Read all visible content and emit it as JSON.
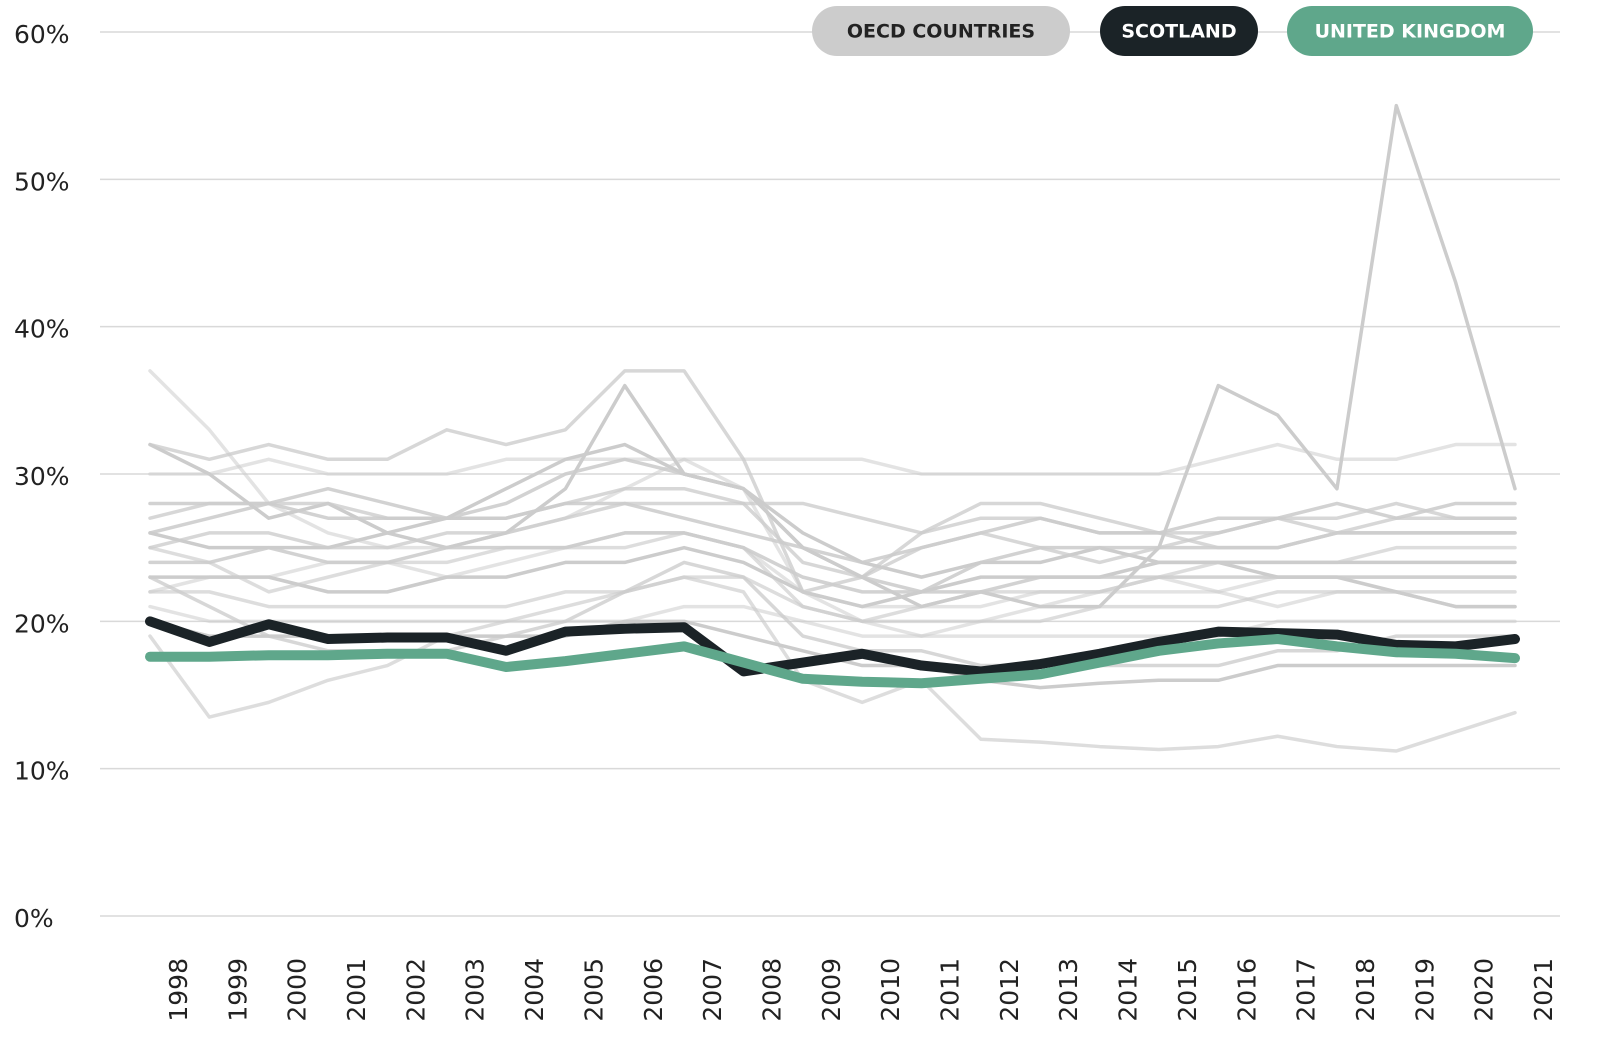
{
  "chart_data": {
    "type": "line",
    "categories": [
      "1998",
      "1999",
      "2000",
      "2001",
      "2002",
      "2003",
      "2004",
      "2005",
      "2006",
      "2007",
      "2008",
      "2009",
      "2010",
      "2011",
      "2012",
      "2013",
      "2014",
      "2015",
      "2016",
      "2017",
      "2018",
      "2019",
      "2020",
      "2021"
    ],
    "ylim": [
      0,
      60
    ],
    "yticks": [
      {
        "value": 0,
        "label": "0%"
      },
      {
        "value": 10,
        "label": "10%"
      },
      {
        "value": 20,
        "label": "20%"
      },
      {
        "value": 30,
        "label": "30%"
      },
      {
        "value": 40,
        "label": "40%"
      },
      {
        "value": 50,
        "label": "50%"
      },
      {
        "value": 60,
        "label": "60%"
      }
    ],
    "grid": true,
    "legend": "top-right",
    "series": [
      {
        "name": "OECD COUNTRIES",
        "color": "#cccccc",
        "lines": [
          [
            37,
            33,
            28,
            26,
            25,
            25,
            26,
            27,
            29,
            31,
            29,
            22,
            20,
            19,
            20,
            21,
            22,
            23,
            22,
            21,
            22,
            22,
            21,
            21
          ],
          [
            32,
            31,
            32,
            31,
            31,
            33,
            32,
            33,
            37,
            37,
            31,
            22,
            23,
            25,
            26,
            25,
            24,
            25,
            26,
            27,
            27,
            28,
            27,
            27
          ],
          [
            32,
            30,
            27,
            28,
            26,
            25,
            26,
            29,
            36,
            30,
            29,
            25,
            23,
            21,
            22,
            21,
            21,
            25,
            36,
            34,
            29,
            55,
            43,
            29
          ],
          [
            19,
            13.5,
            14.5,
            16,
            17,
            19,
            20,
            21,
            22,
            23,
            22,
            16,
            14.5,
            16,
            12,
            11.8,
            11.5,
            11.3,
            11.5,
            12.2,
            11.5,
            11.2,
            12.5,
            13.8
          ],
          [
            26,
            27,
            28,
            27,
            27,
            27,
            27,
            28,
            28,
            27,
            26,
            25,
            24,
            25,
            26,
            27,
            26,
            26,
            27,
            27,
            28,
            27,
            28,
            28
          ],
          [
            30,
            30,
            31,
            30,
            30,
            30,
            31,
            31,
            31,
            31,
            31,
            31,
            31,
            30,
            30,
            30,
            30,
            30,
            31,
            32,
            31,
            31,
            32,
            32
          ],
          [
            25,
            26,
            26,
            25,
            25,
            26,
            26,
            27,
            28,
            28,
            28,
            28,
            27,
            26,
            27,
            27,
            26,
            26,
            26,
            27,
            26,
            27,
            27,
            27
          ],
          [
            23,
            23,
            23,
            22,
            22,
            23,
            23,
            24,
            24,
            25,
            24,
            22,
            21,
            22,
            23,
            23,
            23,
            24,
            24,
            24,
            24,
            24,
            24,
            24
          ],
          [
            22,
            22,
            21,
            21,
            21,
            21,
            21,
            22,
            22,
            23,
            23,
            21,
            20,
            20,
            20,
            20,
            21,
            21,
            21,
            22,
            22,
            22,
            22,
            22
          ],
          [
            24,
            24,
            25,
            24,
            24,
            25,
            25,
            25,
            26,
            26,
            25,
            23,
            22,
            22,
            22,
            23,
            23,
            23,
            23,
            23,
            23,
            23,
            23,
            23
          ],
          [
            21,
            20,
            20,
            20,
            20,
            20,
            20,
            20,
            20,
            21,
            21,
            20,
            19,
            19,
            19,
            19,
            19,
            19,
            19,
            20,
            20,
            20,
            20,
            20
          ],
          [
            27,
            28,
            28,
            28,
            27,
            27,
            27,
            28,
            29,
            29,
            28,
            24,
            23,
            26,
            28,
            28,
            27,
            26,
            25,
            25,
            26,
            26,
            26,
            26
          ],
          [
            20,
            19,
            19,
            19,
            19,
            19,
            19,
            19,
            20,
            20,
            19,
            18,
            17,
            17,
            16,
            15.5,
            15.8,
            16,
            16,
            17,
            17,
            17,
            17,
            17
          ],
          [
            25,
            24,
            22,
            23,
            24,
            24,
            25,
            25,
            25,
            26,
            25,
            21,
            20,
            21,
            22,
            22,
            22,
            23,
            24,
            24,
            24,
            25,
            25,
            25
          ],
          [
            28,
            28,
            28,
            29,
            28,
            27,
            28,
            30,
            31,
            30,
            29,
            25,
            23,
            22,
            24,
            25,
            25,
            25,
            25,
            25,
            26,
            26,
            26,
            26
          ],
          [
            22,
            23,
            23,
            24,
            24,
            23,
            24,
            25,
            26,
            26,
            25,
            22,
            21,
            21,
            21,
            22,
            22,
            22,
            22,
            23,
            23,
            23,
            23,
            23
          ],
          [
            23,
            21,
            19,
            18,
            18,
            18,
            19,
            20,
            22,
            24,
            23,
            19,
            18,
            18,
            17,
            17,
            17,
            17,
            17,
            18,
            18,
            19,
            19,
            19
          ],
          [
            26,
            25,
            25,
            25,
            26,
            27,
            29,
            31,
            32,
            30,
            29,
            26,
            24,
            23,
            24,
            24,
            25,
            24,
            24,
            23,
            23,
            22,
            21,
            21
          ]
        ]
      },
      {
        "name": "SCOTLAND",
        "color": "#1b2327",
        "values": [
          20.0,
          18.6,
          19.8,
          18.8,
          18.9,
          18.9,
          18.0,
          19.3,
          19.5,
          19.6,
          16.6,
          17.2,
          17.8,
          17.0,
          16.6,
          17.1,
          17.8,
          18.6,
          19.3,
          19.2,
          19.1,
          18.4,
          18.3,
          18.8
        ]
      },
      {
        "name": "UNITED KINGDOM",
        "color": "#5fa78b",
        "values": [
          17.6,
          17.6,
          17.7,
          17.7,
          17.8,
          17.8,
          16.9,
          17.3,
          17.8,
          18.3,
          17.2,
          16.1,
          15.9,
          15.8,
          16.1,
          16.4,
          17.2,
          18.0,
          18.5,
          18.8,
          18.3,
          17.9,
          17.8,
          17.5
        ]
      }
    ]
  }
}
